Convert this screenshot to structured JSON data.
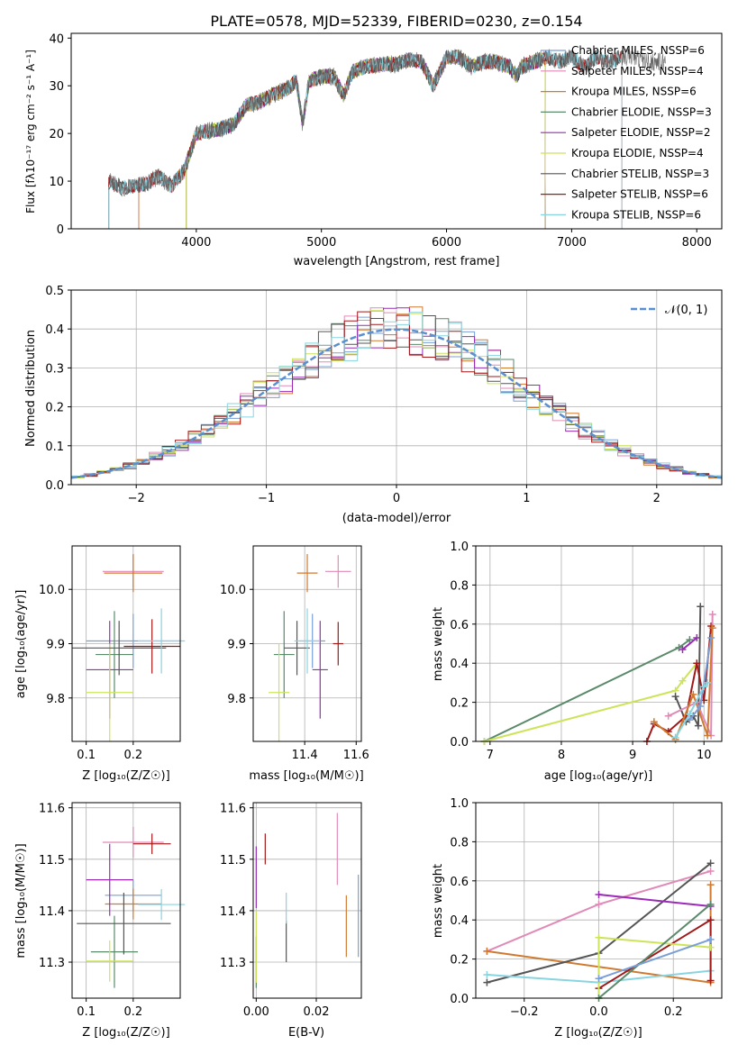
{
  "figure_title": "PLATE=0578, MJD=52339, FIBERID=0230, z=0.154",
  "colors": {
    "Chabrier MILES": "#7a9fd8",
    "Salpeter MILES": "#e08ab8",
    "Kroupa MILES": "#d07a30",
    "Chabrier ELODIE": "#5a8a6a",
    "Salpeter ELODIE": "#9a2ab8",
    "Kroupa ELODIE": "#cde45a",
    "Chabrier STELIB": "#555555",
    "Salpeter STELIB": "#a01818",
    "Kroupa STELIB": "#88d4e0",
    "normal": "#5b8fd0",
    "grid": "#b0b0b0"
  },
  "panels": {
    "spectrum": {
      "xlabel": "wavelength [Angstrom, rest frame]",
      "ylabel": "Flux [fλ10⁻¹⁷ erg cm⁻² s⁻¹ A⁻¹]",
      "xticks": [
        "4000",
        "5000",
        "6000",
        "7000",
        "8000"
      ],
      "yticks": [
        "0",
        "10",
        "20",
        "30",
        "40"
      ],
      "legend": [
        "Chabrier MILES, NSSP=6",
        "Salpeter MILES, NSSP=4",
        "Kroupa MILES, NSSP=6",
        "Chabrier ELODIE, NSSP=3",
        "Salpeter ELODIE, NSSP=2",
        "Kroupa ELODIE, NSSP=4",
        "Chabrier STELIB, NSSP=3",
        "Salpeter STELIB, NSSP=6",
        "Kroupa STELIB, NSSP=6"
      ]
    },
    "residuals": {
      "xlabel": "(data-model)/error",
      "ylabel": "Normed distribution",
      "xticks": [
        "−2",
        "−1",
        "0",
        "1",
        "2"
      ],
      "yticks": [
        "0.0",
        "0.1",
        "0.2",
        "0.3",
        "0.4",
        "0.5"
      ],
      "legend": "𝒩(0, 1)"
    },
    "age_Z": {
      "xlabel": "Z [log₁₀(Z/Z☉)]",
      "ylabel": "age  [log₁₀(age/yr)]",
      "xticks": [
        "0.1",
        "0.2"
      ],
      "yticks": [
        "9.8",
        "9.9",
        "10.0"
      ]
    },
    "age_mass": {
      "xlabel": "mass [log₁₀(M/M☉)]",
      "xticks": [
        "11.4",
        "11.6"
      ],
      "yticks": [
        "9.8",
        "9.9",
        "10.0"
      ]
    },
    "weight_age": {
      "xlabel": "age  [log₁₀(age/yr)]",
      "ylabel": "mass weight",
      "xticks": [
        "7",
        "8",
        "9",
        "10"
      ],
      "yticks": [
        "0.0",
        "0.2",
        "0.4",
        "0.6",
        "0.8",
        "1.0"
      ]
    },
    "mass_Z": {
      "xlabel": "Z [log₁₀(Z/Z☉)]",
      "ylabel": "mass [log₁₀(M/M☉)]",
      "xticks": [
        "0.1",
        "0.2"
      ],
      "yticks": [
        "11.3",
        "11.4",
        "11.5",
        "11.6"
      ]
    },
    "mass_ebv": {
      "xlabel": "E(B-V)",
      "xticks": [
        "0.00",
        "0.02"
      ],
      "yticks": [
        "11.3",
        "11.4",
        "11.5",
        "11.6"
      ]
    },
    "weight_Z": {
      "xlabel": "Z [log₁₀(Z/Z☉)]",
      "ylabel": "mass weight",
      "xticks": [
        "−0.2",
        "0.0",
        "0.2"
      ],
      "yticks": [
        "0.0",
        "0.2",
        "0.4",
        "0.6",
        "0.8",
        "1.0"
      ]
    }
  },
  "chart_data": [
    {
      "type": "line",
      "title": "PLATE=0578, MJD=52339, FIBERID=0230, z=0.154",
      "xlabel": "wavelength [Angstrom, rest frame]",
      "ylabel": "Flux [fλ10⁻¹⁷ erg cm⁻² s⁻¹ A⁻¹]",
      "xlim": [
        3000,
        8200
      ],
      "ylim": [
        0,
        41
      ],
      "grid": false,
      "legend_position": "right",
      "data_spectrum": {
        "x": [
          3300,
          3400,
          3500,
          3600,
          3700,
          3800,
          3900,
          4000,
          4100,
          4200,
          4300,
          4400,
          4500,
          4600,
          4700,
          4800,
          4850,
          4900,
          5000,
          5100,
          5175,
          5250,
          5350,
          5500,
          5600,
          5700,
          5800,
          5893,
          6000,
          6100,
          6200,
          6300,
          6400,
          6500,
          6563,
          6600,
          6700,
          6800,
          6900,
          7000,
          7100,
          7200,
          7300,
          7400,
          7500,
          7600,
          7700,
          7750
        ],
        "y": [
          10,
          8.5,
          9,
          9.5,
          11,
          9,
          12,
          20,
          20.5,
          21,
          22,
          26,
          26.5,
          28,
          29,
          31,
          22,
          31,
          32,
          32,
          28,
          33,
          34,
          34.5,
          34.5,
          35.5,
          35,
          30,
          36,
          36,
          34,
          35,
          35,
          34,
          32,
          34,
          35,
          36,
          35,
          36,
          34,
          36,
          35,
          36,
          36,
          35,
          35,
          35
        ]
      },
      "series": [
        {
          "name": "Chabrier MILES, NSSP=6",
          "x_range": [
            3540,
            6790
          ]
        },
        {
          "name": "Salpeter MILES, NSSP=4",
          "x_range": [
            3540,
            6790
          ]
        },
        {
          "name": "Kroupa MILES, NSSP=6",
          "x_range": [
            3540,
            6790
          ]
        },
        {
          "name": "Chabrier ELODIE, NSSP=3",
          "x_range": [
            3920,
            6790
          ]
        },
        {
          "name": "Salpeter ELODIE, NSSP=2",
          "x_range": [
            3920,
            6790
          ]
        },
        {
          "name": "Kroupa ELODIE, NSSP=4",
          "x_range": [
            3920,
            6790
          ]
        },
        {
          "name": "Chabrier STELIB, NSSP=3",
          "x_range": [
            3300,
            7400
          ]
        },
        {
          "name": "Salpeter STELIB, NSSP=6",
          "x_range": [
            3300,
            7400
          ]
        },
        {
          "name": "Kroupa STELIB, NSSP=6",
          "x_range": [
            3300,
            7400
          ]
        }
      ]
    },
    {
      "type": "area",
      "xlabel": "(data-model)/error",
      "ylabel": "Normed distribution",
      "xlim": [
        -2.5,
        2.5
      ],
      "ylim": [
        0,
        0.5
      ],
      "grid": true,
      "legend_position": "top-right",
      "series_name": "𝒩(0, 1)",
      "bin_width": 0.1,
      "histogram_model_count": 9
    },
    {
      "type": "scatter",
      "xlabel": "Z [log₁₀(Z/Z☉)]",
      "ylabel": "age  [log₁₀(age/yr)]",
      "xlim": [
        0.07,
        0.3
      ],
      "ylim": [
        9.72,
        10.08
      ],
      "grid": true,
      "points": [
        {
          "name": "Chabrier MILES",
          "x": 0.2,
          "y": 9.905,
          "xerr": 0.1,
          "yerr": 0.05
        },
        {
          "name": "Salpeter MILES",
          "x": 0.2,
          "y": 10.033,
          "xerr": 0.065,
          "yerr": 0.03
        },
        {
          "name": "Kroupa MILES",
          "x": 0.2,
          "y": 10.03,
          "xerr": 0.062,
          "yerr": 0.035
        },
        {
          "name": "Chabrier ELODIE",
          "x": 0.16,
          "y": 9.88,
          "xerr": 0.04,
          "yerr": 0.08
        },
        {
          "name": "Salpeter ELODIE",
          "x": 0.15,
          "y": 9.852,
          "xerr": 0.05,
          "yerr": 0.09
        },
        {
          "name": "Kroupa ELODIE",
          "x": 0.15,
          "y": 9.81,
          "xerr": 0.05,
          "yerr": 0.09
        },
        {
          "name": "Chabrier STELIB",
          "x": 0.17,
          "y": 9.892,
          "xerr": 0.1,
          "yerr": 0.05
        },
        {
          "name": "Salpeter STELIB",
          "x": 0.24,
          "y": 9.895,
          "xerr": 0.06,
          "yerr": 0.05
        },
        {
          "name": "Kroupa STELIB",
          "x": 0.26,
          "y": 9.905,
          "xerr": 0.05,
          "yerr": 0.06
        }
      ]
    },
    {
      "type": "scatter",
      "xlabel": "mass [log₁₀(M/M☉)]",
      "xlim": [
        11.2,
        11.62
      ],
      "ylim": [
        9.72,
        10.08
      ],
      "grid": true,
      "points": [
        {
          "name": "Chabrier MILES",
          "x": 11.43,
          "y": 9.905
        },
        {
          "name": "Salpeter MILES",
          "x": 11.53,
          "y": 10.033
        },
        {
          "name": "Kroupa MILES",
          "x": 11.41,
          "y": 10.03
        },
        {
          "name": "Chabrier ELODIE",
          "x": 11.32,
          "y": 9.88
        },
        {
          "name": "Salpeter ELODIE",
          "x": 11.46,
          "y": 9.852
        },
        {
          "name": "Kroupa ELODIE",
          "x": 11.3,
          "y": 9.81
        },
        {
          "name": "Chabrier STELIB",
          "x": 11.37,
          "y": 9.892
        },
        {
          "name": "Salpeter STELIB",
          "x": 11.53,
          "y": 9.9
        },
        {
          "name": "Kroupa STELIB",
          "x": 11.41,
          "y": 9.905
        }
      ]
    },
    {
      "type": "line",
      "xlabel": "age  [log₁₀(age/yr)]",
      "ylabel": "mass weight",
      "xlim": [
        6.8,
        10.25
      ],
      "ylim": [
        0,
        1
      ],
      "grid": true,
      "series": [
        {
          "name": "Chabrier ELODIE",
          "x": [
            6.92,
            9.65,
            9.8
          ],
          "y": [
            0.0,
            0.48,
            0.52
          ]
        },
        {
          "name": "Kroupa ELODIE",
          "x": [
            6.92,
            9.6,
            9.7,
            9.9
          ],
          "y": [
            0.0,
            0.26,
            0.31,
            0.4
          ]
        },
        {
          "name": "Salpeter ELODIE",
          "x": [
            9.7,
            9.9
          ],
          "y": [
            0.47,
            0.53
          ]
        },
        {
          "name": "Chabrier STELIB",
          "x": [
            9.6,
            9.75,
            9.85,
            9.92,
            9.95
          ],
          "y": [
            0.23,
            0.1,
            0.13,
            0.08,
            0.69
          ]
        },
        {
          "name": "Salpeter STELIB",
          "x": [
            9.2,
            9.3,
            9.5,
            9.75,
            9.9,
            10.0,
            10.1
          ],
          "y": [
            0.0,
            0.09,
            0.05,
            0.13,
            0.4,
            0.21,
            0.59
          ]
        },
        {
          "name": "Salpeter MILES",
          "x": [
            9.5,
            9.9,
            10.1,
            10.12
          ],
          "y": [
            0.13,
            0.2,
            0.03,
            0.65
          ]
        },
        {
          "name": "Kroupa MILES",
          "x": [
            9.3,
            9.6,
            9.85,
            10.05,
            10.12
          ],
          "y": [
            0.1,
            0.01,
            0.24,
            0.03,
            0.58
          ]
        },
        {
          "name": "Chabrier MILES",
          "x": [
            9.8,
            9.95,
            10.1
          ],
          "y": [
            0.11,
            0.18,
            0.53
          ]
        },
        {
          "name": "Kroupa STELIB",
          "x": [
            9.6,
            9.8,
            10.0,
            10.05
          ],
          "y": [
            0.02,
            0.14,
            0.28,
            0.3
          ]
        }
      ]
    },
    {
      "type": "scatter",
      "xlabel": "Z [log₁₀(Z/Z☉)]",
      "ylabel": "mass [log₁₀(M/M☉)]",
      "xlim": [
        0.07,
        0.3
      ],
      "ylim": [
        11.23,
        11.61
      ],
      "grid": true,
      "points": [
        {
          "name": "Chabrier MILES",
          "x": 0.2,
          "y": 11.43
        },
        {
          "name": "Salpeter MILES",
          "x": 0.2,
          "y": 11.533
        },
        {
          "name": "Kroupa MILES",
          "x": 0.2,
          "y": 11.413
        },
        {
          "name": "Chabrier ELODIE",
          "x": 0.16,
          "y": 11.32
        },
        {
          "name": "Salpeter ELODIE",
          "x": 0.15,
          "y": 11.46
        },
        {
          "name": "Kroupa ELODIE",
          "x": 0.15,
          "y": 11.302
        },
        {
          "name": "Chabrier STELIB",
          "x": 0.18,
          "y": 11.375
        },
        {
          "name": "Salpeter STELIB",
          "x": 0.24,
          "y": 11.53
        },
        {
          "name": "Kroupa STELIB",
          "x": 0.26,
          "y": 11.412
        }
      ]
    },
    {
      "type": "scatter",
      "xlabel": "E(B-V)",
      "xlim": [
        -0.001,
        0.035
      ],
      "ylim": [
        11.23,
        11.61
      ],
      "grid": true,
      "points": [
        {
          "name": "Chabrier MILES",
          "x": 0.034,
          "y": 11.39
        },
        {
          "name": "Salpeter MILES",
          "x": 0.027,
          "y": 11.52
        },
        {
          "name": "Kroupa MILES",
          "x": 0.03,
          "y": 11.37
        },
        {
          "name": "Chabrier ELODIE",
          "x": 0.0,
          "y": 11.3
        },
        {
          "name": "Salpeter ELODIE",
          "x": 0.0,
          "y": 11.465
        },
        {
          "name": "Kroupa ELODIE",
          "x": 0.0,
          "y": 11.33
        },
        {
          "name": "Chabrier STELIB",
          "x": 0.01,
          "y": 11.34
        },
        {
          "name": "Salpeter STELIB",
          "x": 0.003,
          "y": 11.52
        },
        {
          "name": "Kroupa STELIB",
          "x": 0.01,
          "y": 11.405
        }
      ]
    },
    {
      "type": "line",
      "xlabel": "Z [log₁₀(Z/Z☉)]",
      "ylabel": "mass weight",
      "xlim": [
        -0.33,
        0.33
      ],
      "ylim": [
        0,
        1
      ],
      "grid": true,
      "series": [
        {
          "name": "Salpeter MILES",
          "x": [
            -0.3,
            0.0,
            0.3
          ],
          "y": [
            0.24,
            0.48,
            0.65
          ]
        },
        {
          "name": "Kroupa MILES",
          "x": [
            -0.3,
            0.3,
            0.3
          ],
          "y": [
            0.24,
            0.08,
            0.58
          ]
        },
        {
          "name": "Chabrier STELIB",
          "x": [
            -0.3,
            0.0,
            0.3
          ],
          "y": [
            0.08,
            0.23,
            0.69
          ]
        },
        {
          "name": "Kroupa STELIB",
          "x": [
            -0.3,
            0.0,
            0.3
          ],
          "y": [
            0.12,
            0.08,
            0.14
          ]
        },
        {
          "name": "Salpeter STELIB",
          "x": [
            0.0,
            0.3,
            0.3
          ],
          "y": [
            0.05,
            0.4,
            0.09
          ]
        },
        {
          "name": "Salpeter ELODIE",
          "x": [
            0.0,
            0.3
          ],
          "y": [
            0.53,
            0.47
          ]
        },
        {
          "name": "Kroupa ELODIE",
          "x": [
            0.0,
            0.0,
            0.3
          ],
          "y": [
            0.0,
            0.31,
            0.26
          ]
        },
        {
          "name": "Chabrier ELODIE",
          "x": [
            0.0,
            0.3
          ],
          "y": [
            0.0,
            0.48
          ]
        },
        {
          "name": "Chabrier MILES",
          "x": [
            0.0,
            0.3
          ],
          "y": [
            0.1,
            0.3
          ]
        }
      ]
    }
  ]
}
